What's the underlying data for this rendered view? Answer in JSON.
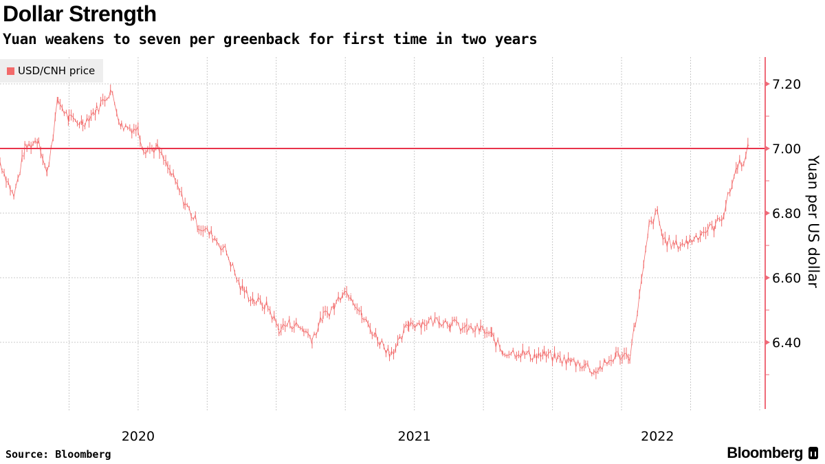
{
  "header": {
    "title": "Dollar Strength",
    "subtitle": "Yuan weakens to seven per greenback for first time in two years"
  },
  "footer": {
    "source": "Source: Bloomberg",
    "logo": "Bloomberg"
  },
  "colors": {
    "series": "#f26a6a",
    "reference_line": "#e8324a",
    "axis": "#ef6a78",
    "grid": "#c8c8c8"
  },
  "chart_data": {
    "type": "line",
    "title": "Dollar Strength",
    "subtitle": "Yuan weakens to seven per greenback for first time in two years",
    "legend": {
      "entries": [
        "USD/CNH price"
      ],
      "placement": "top-left"
    },
    "xlabel": "",
    "ylabel": "Yuan per US dollar",
    "x_tick_labels": [
      {
        "label": "2020",
        "x": 2020.5
      },
      {
        "label": "2021",
        "x": 2021.5
      },
      {
        "label": "2022",
        "x": 2022.38
      }
    ],
    "x_gridlines": [
      2020.25,
      2020.5,
      2020.75,
      2021.0,
      2021.25,
      2021.5,
      2021.75,
      2022.0,
      2022.25,
      2022.5,
      2022.75
    ],
    "y_ticks": [
      6.4,
      6.6,
      6.8,
      7.0,
      7.2
    ],
    "y_tick_labels": [
      "6.40",
      "6.60",
      "6.80",
      "7.00",
      "7.20"
    ],
    "y_minor_ticks": [
      6.3,
      6.5,
      6.7,
      6.9,
      7.1
    ],
    "xlim": [
      2020.0,
      2022.77
    ],
    "ylim": [
      6.232,
      7.283
    ],
    "grid": true,
    "reference_line": 7.0,
    "series": [
      {
        "name": "USD/CNH price",
        "x": [
          2020.0,
          2020.05,
          2020.09,
          2020.14,
          2020.17,
          2020.21,
          2020.25,
          2020.3,
          2020.35,
          2020.4,
          2020.44,
          2020.5,
          2020.52,
          2020.57,
          2020.62,
          2020.67,
          2020.72,
          2020.77,
          2020.82,
          2020.87,
          2020.92,
          2020.97,
          2021.01,
          2021.05,
          2021.1,
          2021.13,
          2021.17,
          2021.21,
          2021.24,
          2021.27,
          2021.31,
          2021.36,
          2021.41,
          2021.44,
          2021.48,
          2021.53,
          2021.59,
          2021.63,
          2021.69,
          2021.74,
          2021.78,
          2021.82,
          2021.87,
          2021.92,
          2021.97,
          2022.02,
          2022.07,
          2022.12,
          2022.15,
          2022.19,
          2022.23,
          2022.28,
          2022.3,
          2022.33,
          2022.35,
          2022.38,
          2022.4,
          2022.44,
          2022.49,
          2022.54,
          2022.59,
          2022.62,
          2022.65,
          2022.67,
          2022.7,
          2022.71
        ],
        "values": [
          6.96,
          6.85,
          7.0,
          7.03,
          6.92,
          7.15,
          7.09,
          7.08,
          7.12,
          7.18,
          7.07,
          7.06,
          7.0,
          7.0,
          6.92,
          6.83,
          6.76,
          6.73,
          6.68,
          6.57,
          6.53,
          6.51,
          6.44,
          6.46,
          6.44,
          6.41,
          6.48,
          6.51,
          6.56,
          6.55,
          6.48,
          6.42,
          6.37,
          6.39,
          6.46,
          6.46,
          6.47,
          6.46,
          6.44,
          6.44,
          6.42,
          6.37,
          6.37,
          6.36,
          6.36,
          6.35,
          6.34,
          6.33,
          6.31,
          6.33,
          6.36,
          6.36,
          6.46,
          6.63,
          6.76,
          6.8,
          6.72,
          6.7,
          6.71,
          6.74,
          6.76,
          6.8,
          6.89,
          6.95,
          6.97,
          7.01
        ]
      }
    ]
  }
}
